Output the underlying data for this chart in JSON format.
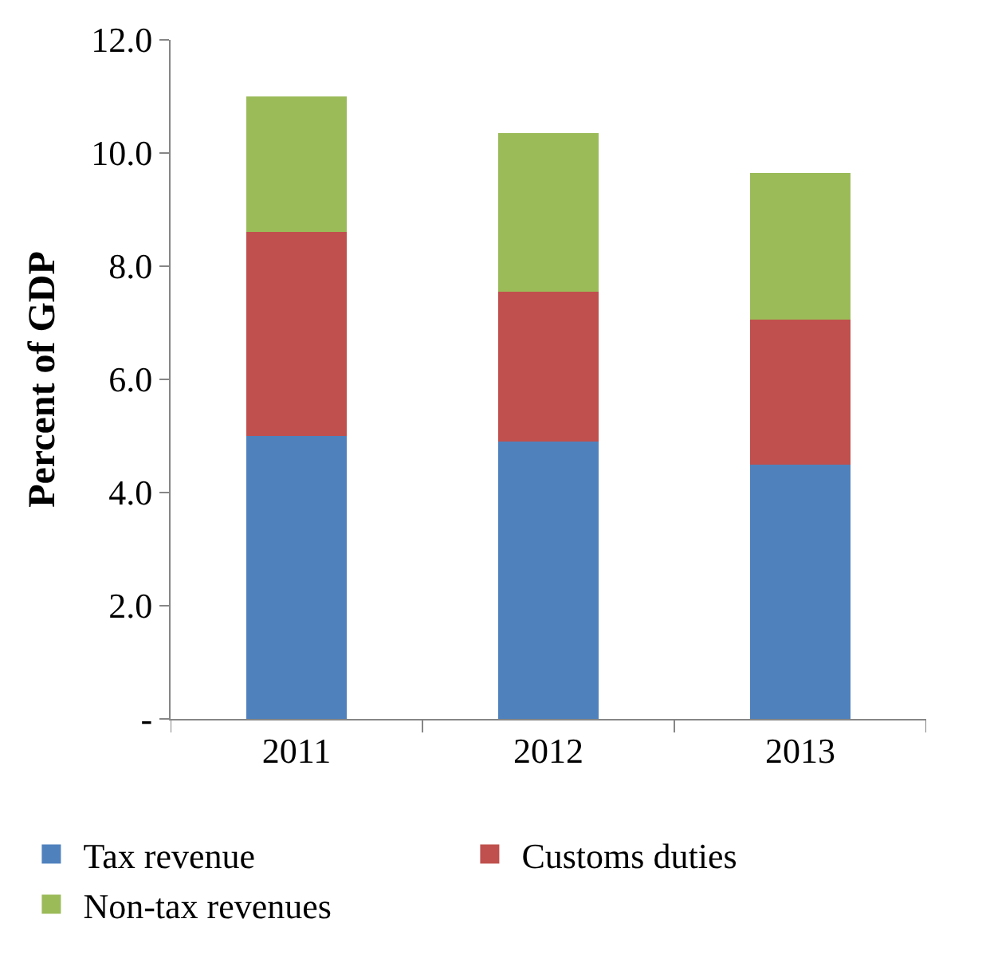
{
  "chart_data": {
    "type": "bar",
    "ylabel": "Percent of GDP",
    "categories": [
      "2011",
      "2012",
      "2013"
    ],
    "stacked": true,
    "series": [
      {
        "name": "Tax revenue",
        "color": "#4f81bd",
        "values": [
          5.0,
          4.9,
          4.5
        ]
      },
      {
        "name": "Customs duties",
        "color": "#c0504d",
        "values": [
          3.6,
          2.65,
          2.55
        ]
      },
      {
        "name": "Non-tax revenues",
        "color": "#9bbb59",
        "values": [
          2.4,
          2.8,
          2.6
        ]
      }
    ],
    "ylim": [
      0,
      12
    ],
    "yticks": [
      {
        "value": 0,
        "label": "-"
      },
      {
        "value": 2,
        "label": "2.0"
      },
      {
        "value": 4,
        "label": "4.0"
      },
      {
        "value": 6,
        "label": "6.0"
      },
      {
        "value": 8,
        "label": "8.0"
      },
      {
        "value": 10,
        "label": "10.0"
      },
      {
        "value": 12,
        "label": "12.0"
      }
    ],
    "legend": "bottom"
  }
}
